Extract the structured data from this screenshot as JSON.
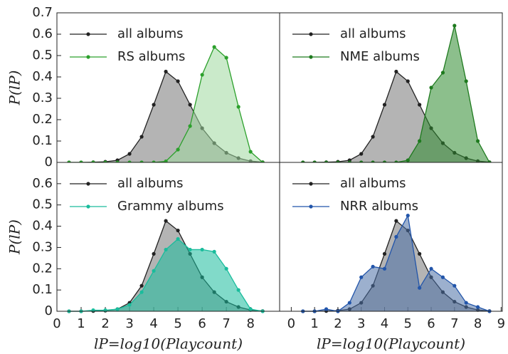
{
  "chart_data": [
    {
      "type": "line",
      "legend": "upper left",
      "x": [
        0.5,
        1,
        1.5,
        2,
        2.5,
        3,
        3.5,
        4,
        4.5,
        5,
        5.5,
        6,
        6.5,
        7,
        7.5,
        8,
        8.5
      ],
      "xlim": [
        0,
        9.2
      ],
      "ylim": [
        0,
        0.7
      ],
      "yticks": [
        0.0,
        0.1,
        0.2,
        0.3,
        0.4,
        0.5,
        0.6,
        0.7
      ],
      "ylabel": "P(lP)",
      "series": [
        {
          "name": "all albums",
          "color": "#222222",
          "fill": "#8c8c8c",
          "values": [
            0,
            0,
            0.001,
            0.003,
            0.01,
            0.04,
            0.12,
            0.27,
            0.425,
            0.38,
            0.27,
            0.16,
            0.09,
            0.045,
            0.02,
            0.006,
            0.001
          ]
        },
        {
          "name": "RS albums",
          "color": "#2ca02c",
          "fill": "#9fd89f",
          "values": [
            0,
            0,
            0,
            0,
            0,
            0,
            0,
            0,
            0.005,
            0.06,
            0.17,
            0.41,
            0.54,
            0.49,
            0.26,
            0.05,
            0
          ]
        }
      ]
    },
    {
      "type": "line",
      "legend": "upper left",
      "x": [
        0.5,
        1,
        1.5,
        2,
        2.5,
        3,
        3.5,
        4,
        4.5,
        5,
        5.5,
        6,
        6.5,
        7,
        7.5,
        8,
        8.5
      ],
      "xlim": [
        -0.5,
        9.05
      ],
      "ylim": [
        0,
        0.7
      ],
      "series": [
        {
          "name": "all albums",
          "color": "#222222",
          "fill": "#8c8c8c",
          "values": [
            0,
            0,
            0.001,
            0.003,
            0.01,
            0.04,
            0.12,
            0.27,
            0.425,
            0.38,
            0.27,
            0.16,
            0.09,
            0.045,
            0.02,
            0.006,
            0.001
          ]
        },
        {
          "name": "NME albums",
          "color": "#1e7a1e",
          "fill": "#2e8b2e",
          "values": [
            0,
            0,
            0,
            0,
            0,
            0,
            0,
            0,
            0,
            0.01,
            0.1,
            0.35,
            0.42,
            0.64,
            0.38,
            0.1,
            0
          ]
        }
      ]
    },
    {
      "type": "line",
      "legend": "upper left",
      "x": [
        0.5,
        1,
        1.5,
        2,
        2.5,
        3,
        3.5,
        4,
        4.5,
        5,
        5.5,
        6,
        6.5,
        7,
        7.5,
        8,
        8.5
      ],
      "xlim": [
        0,
        9.2
      ],
      "ylim": [
        0,
        0.7
      ],
      "yticks": [
        0.0,
        0.1,
        0.2,
        0.3,
        0.4,
        0.5,
        0.6
      ],
      "xticks": [
        0,
        1,
        2,
        3,
        4,
        5,
        6,
        7,
        8
      ],
      "ylabel": "P(lP)",
      "xlabel": "lP=log10(Playcount)",
      "series": [
        {
          "name": "all albums",
          "color": "#222222",
          "fill": "#8c8c8c",
          "values": [
            0,
            0,
            0.001,
            0.003,
            0.01,
            0.04,
            0.12,
            0.27,
            0.425,
            0.38,
            0.27,
            0.16,
            0.09,
            0.045,
            0.02,
            0.006,
            0.001
          ]
        },
        {
          "name": "Grammy albums",
          "color": "#1abc9c",
          "fill": "#1abc9c",
          "values": [
            0,
            0,
            0.005,
            0.005,
            0.01,
            0.03,
            0.09,
            0.19,
            0.29,
            0.34,
            0.29,
            0.29,
            0.28,
            0.2,
            0.1,
            0.01,
            0
          ]
        }
      ]
    },
    {
      "type": "line",
      "legend": "upper left",
      "x": [
        0.5,
        1,
        1.5,
        2,
        2.5,
        3,
        3.5,
        4,
        4.5,
        5,
        5.5,
        6,
        6.5,
        7,
        7.5,
        8,
        8.5
      ],
      "xlim": [
        -0.5,
        9.05
      ],
      "ylim": [
        0,
        0.7
      ],
      "xticks": [
        0,
        1,
        2,
        3,
        4,
        5,
        6,
        7,
        8,
        9
      ],
      "xlabel": "lP=log10(Playcount)",
      "series": [
        {
          "name": "all albums",
          "color": "#222222",
          "fill": "#8c8c8c",
          "values": [
            0,
            0,
            0.001,
            0.003,
            0.01,
            0.04,
            0.12,
            0.27,
            0.425,
            0.38,
            0.27,
            0.16,
            0.09,
            0.045,
            0.02,
            0.006,
            0.001
          ]
        },
        {
          "name": "NRR albums",
          "color": "#2255aa",
          "fill": "#4a6fa5",
          "values": [
            0,
            0,
            0.01,
            0,
            0.04,
            0.16,
            0.21,
            0.2,
            0.35,
            0.45,
            0.11,
            0.2,
            0.16,
            0.12,
            0.04,
            0.02,
            0
          ]
        }
      ]
    }
  ]
}
